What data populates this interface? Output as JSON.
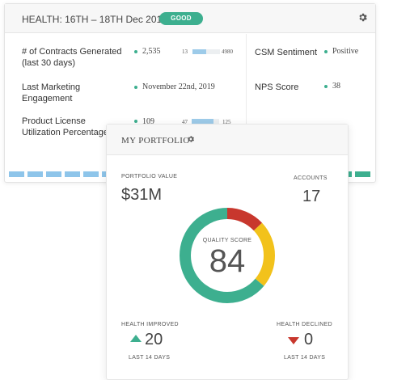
{
  "health": {
    "title": "HEALTH: 16TH – 18TH Dec 2019",
    "badge": "GOOD",
    "metrics": [
      {
        "label_line1": "# of Contracts Generated",
        "label_line2": "(last 30 days)",
        "value": "2,535",
        "min": "13",
        "max": "4980",
        "fill": 0.51
      },
      {
        "label_line1": "Last Marketing",
        "label_line2": "Engagement",
        "value": "November 22nd, 2019"
      },
      {
        "label_line1": "Product License",
        "label_line2": "Utilization Percentage",
        "value": "109",
        "min": "47",
        "max": "125",
        "fill": 0.79
      }
    ],
    "right_metrics": [
      {
        "label": "CSM Sentiment",
        "value": "Positive"
      },
      {
        "label": "NPS Score",
        "value": "38"
      }
    ]
  },
  "portfolio": {
    "title": "MY PORTFOLIO",
    "value_label": "PORTFOLIO VALUE",
    "value": "$31M",
    "accounts_label": "ACCOUNTS",
    "accounts": "17",
    "score_label": "QUALITY SCORE",
    "score": "84",
    "improved_label": "HEALTH IMPROVED",
    "improved": "20",
    "improved_period": "LAST 14 DAYS",
    "declined_label": "HEALTH DECLINED",
    "declined": "0",
    "declined_period": "LAST 14 DAYS",
    "donut_segments": [
      {
        "status": "red",
        "color": "#c8372d",
        "fraction": 0.13
      },
      {
        "status": "yellow",
        "color": "#f2c21b",
        "fraction": 0.23
      },
      {
        "status": "green",
        "color": "#3daf8f",
        "fraction": 0.64
      }
    ]
  },
  "colors": {
    "good": "#3daf8f",
    "bar_fill": "#9dcbe9",
    "danger": "#c8372d",
    "warning": "#f2c21b"
  }
}
